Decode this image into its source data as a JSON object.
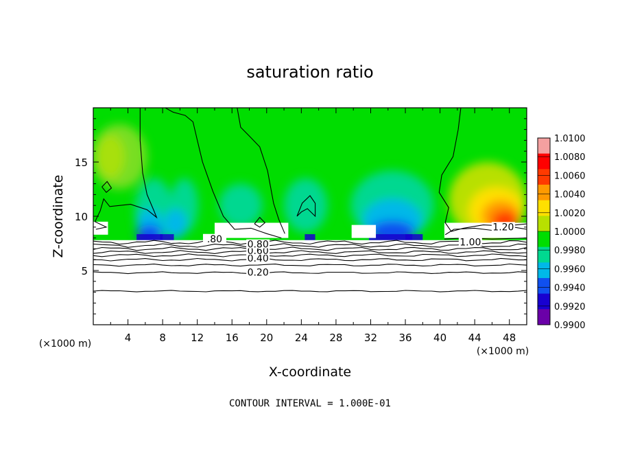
{
  "chart_data": {
    "type": "heatmap",
    "title": "saturation ratio",
    "xlabel": "X-coordinate",
    "ylabel": "Z-coordinate",
    "x_unit_label": "(×1000 m)",
    "x_unit_label_right": "(×1000 m)",
    "xlim": [
      0,
      50
    ],
    "ylim": [
      0,
      20
    ],
    "xticks": [
      4,
      8,
      12,
      16,
      20,
      24,
      28,
      32,
      36,
      40,
      44,
      48
    ],
    "yticks": [
      5,
      10,
      15
    ],
    "footer": "CONTOUR INTERVAL = 1.000E-01",
    "colorbar": {
      "levels": [
        "1.0100",
        "1.0080",
        "1.0060",
        "1.0040",
        "1.0020",
        "1.0000",
        "0.9980",
        "0.9960",
        "0.9940",
        "0.9920",
        "0.9900"
      ],
      "colors": [
        "#f4a0a0",
        "#ff0000",
        "#ff3a00",
        "#ff9a00",
        "#ffe000",
        "#b8e000",
        "#00dd00",
        "#00d890",
        "#00b8e8",
        "#1050f0",
        "#1800d0",
        "#6a00a8"
      ]
    },
    "contour_labels": [
      {
        "text": "0.20",
        "x": 19.0,
        "y": 4.7
      },
      {
        "text": "0.40",
        "x": 19.0,
        "y": 6.0
      },
      {
        "text": "0.60",
        "x": 19.0,
        "y": 6.7
      },
      {
        "text": "0.80",
        "x": 19.0,
        "y": 7.3
      },
      {
        "text": ".80",
        "x": 14.0,
        "y": 7.8
      },
      {
        "text": "1.00",
        "x": 43.5,
        "y": 7.5
      },
      {
        "text": "1.20",
        "x": 47.3,
        "y": 8.9
      }
    ]
  }
}
